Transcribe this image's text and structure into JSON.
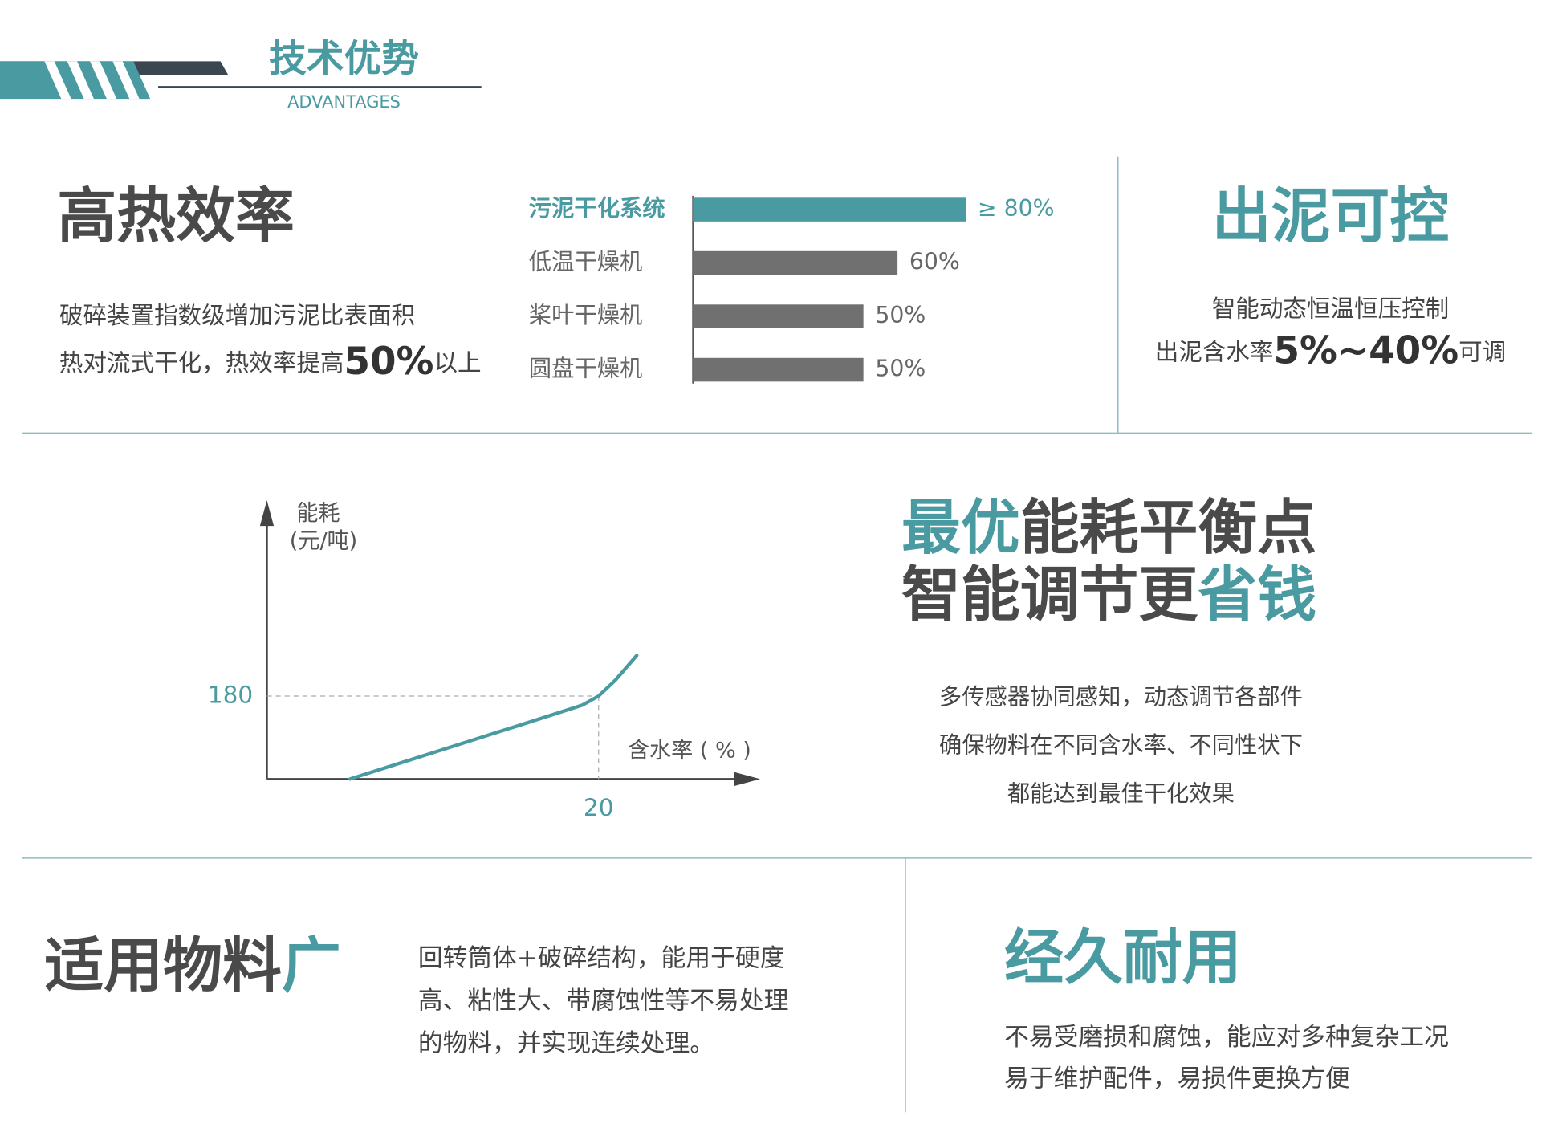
{
  "header": {
    "title": "技术优势",
    "subtitle": "ADVANTAGES"
  },
  "sections": [
    {
      "title": [
        [
          {
            "text": "高热效率",
            "color": "#4a4a4a"
          }
        ]
      ],
      "lines": [
        [
          {
            "text": "破碎装置指数级增加污泥比表面积"
          }
        ],
        [
          {
            "text": "热对流式干化，热效率提高"
          },
          {
            "text": "50%",
            "emphasis": true
          },
          {
            "text": "以上"
          }
        ]
      ]
    },
    {
      "title": [
        [
          {
            "text": "出泥可控",
            "color": "#4a9aa2"
          }
        ]
      ],
      "lines": [
        [
          {
            "text": "智能动态恒温恒压控制"
          }
        ],
        [
          {
            "text": "出泥含水率"
          },
          {
            "text": "5%~40%",
            "emphasis": true
          },
          {
            "text": "可调"
          }
        ]
      ]
    },
    {
      "title": [
        [
          {
            "text": "最优",
            "color": "#4a9aa2"
          },
          {
            "text": "能耗平衡点",
            "color": "#4a4a4a"
          }
        ],
        [
          {
            "text": "智能调节更",
            "color": "#4a4a4a"
          },
          {
            "text": "省钱",
            "color": "#4a9aa2"
          }
        ]
      ],
      "lines": [
        [
          {
            "text": "多传感器协同感知，动态调节各部件"
          }
        ],
        [
          {
            "text": "确保物料在不同含水率、不同性状下"
          }
        ],
        [
          {
            "text": "都能达到最佳干化效果"
          }
        ]
      ]
    },
    {
      "title": [
        [
          {
            "text": "适用物料",
            "color": "#4a4a4a"
          },
          {
            "text": "广",
            "color": "#4a9aa2"
          }
        ]
      ],
      "lines": [
        [
          {
            "text": "回转筒体+破碎结构，能用于硬度"
          }
        ],
        [
          {
            "text": "高、粘性大、带腐蚀性等不易处理"
          }
        ],
        [
          {
            "text": "的物料，并实现连续处理。"
          }
        ]
      ]
    },
    {
      "title": [
        [
          {
            "text": "经久耐用",
            "color": "#4a9aa2"
          }
        ]
      ],
      "lines": [
        [
          {
            "text": "不易受磨损和腐蚀，能应对多种复杂工况"
          }
        ],
        [
          {
            "text": "易于维护配件，易损件更换方便"
          }
        ]
      ]
    }
  ],
  "chart_data": [
    {
      "type": "bar",
      "categories": [
        "污泥干化系统",
        "低温干燥机",
        "桨叶干燥机",
        "圆盘干燥机"
      ],
      "values": [
        80,
        60,
        50,
        50
      ],
      "value_labels": [
        "≥ 80%",
        "60%",
        "50%",
        "50%"
      ],
      "colors": [
        "#4a9aa2",
        "#707070",
        "#707070",
        "#707070"
      ],
      "highlight_index": 0
    },
    {
      "type": "line",
      "y_label": [
        "能耗",
        "(元/吨)"
      ],
      "x_label": "含水率 ( % )",
      "x": [
        5,
        10,
        15,
        19,
        20,
        21,
        22.3
      ],
      "values": [
        0,
        57,
        114,
        160,
        180,
        214,
        268
      ],
      "color": "#4a9aa2",
      "xlim": [
        0,
        29.5
      ],
      "ylim": [
        0,
        596
      ],
      "xticks": [
        20
      ],
      "yticks": [
        180
      ]
    }
  ]
}
